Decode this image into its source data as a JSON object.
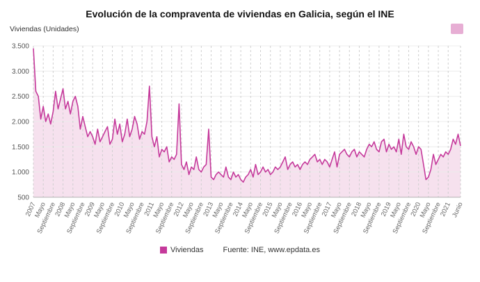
{
  "title": "Evolución de la compraventa de viviendas en Galicia, según el INE",
  "unit_label": "Viviendas (Unidades)",
  "legend": {
    "label": "Viviendas"
  },
  "source": "Fuente: INE, www.epdata.es",
  "colors": {
    "line": "#c5399b",
    "area": "#f6e1ee",
    "badge": "#e7aed4",
    "grid_v": "#cfcfcf",
    "grid_h": "#ececec",
    "axis": "#b0b0b0",
    "tick_text": "#666666"
  },
  "chart_data": {
    "type": "line",
    "title": "Evolución de la compraventa de viviendas en Galicia, según el INE",
    "xlabel": "",
    "ylabel": "Viviendas (Unidades)",
    "ylim": [
      500,
      3500
    ],
    "yticks": [
      500,
      1000,
      1500,
      2000,
      2500,
      3000,
      3500
    ],
    "ytick_labels": [
      "500",
      "1.000",
      "1.500",
      "2.000",
      "2.500",
      "3.000",
      "3.500"
    ],
    "x_unit": "month",
    "x_start": "2007-01",
    "x_end": "2021-06",
    "grid": "vertical-dashed",
    "legend_position": "bottom",
    "xticks": [
      {
        "i": 0,
        "label": "2007"
      },
      {
        "i": 4,
        "label": "Mayo"
      },
      {
        "i": 8,
        "label": "Septiembre"
      },
      {
        "i": 12,
        "label": "2008"
      },
      {
        "i": 16,
        "label": "Mayo"
      },
      {
        "i": 20,
        "label": "Septiembre"
      },
      {
        "i": 24,
        "label": "2009"
      },
      {
        "i": 28,
        "label": "Mayo"
      },
      {
        "i": 32,
        "label": "Septiembre"
      },
      {
        "i": 36,
        "label": "2010"
      },
      {
        "i": 40,
        "label": "Mayo"
      },
      {
        "i": 44,
        "label": "Septiembre"
      },
      {
        "i": 48,
        "label": "2011"
      },
      {
        "i": 52,
        "label": "Mayo"
      },
      {
        "i": 56,
        "label": "Septiembre"
      },
      {
        "i": 60,
        "label": "2012"
      },
      {
        "i": 64,
        "label": "Mayo"
      },
      {
        "i": 68,
        "label": "Septiembre"
      },
      {
        "i": 72,
        "label": "2013"
      },
      {
        "i": 76,
        "label": "Mayo"
      },
      {
        "i": 80,
        "label": "Septiembre"
      },
      {
        "i": 84,
        "label": "2014"
      },
      {
        "i": 88,
        "label": "Mayo"
      },
      {
        "i": 92,
        "label": "Septiembre"
      },
      {
        "i": 96,
        "label": "2015"
      },
      {
        "i": 100,
        "label": "Mayo"
      },
      {
        "i": 104,
        "label": "Septiembre"
      },
      {
        "i": 108,
        "label": "2016"
      },
      {
        "i": 112,
        "label": "Mayo"
      },
      {
        "i": 116,
        "label": "Septiembre"
      },
      {
        "i": 120,
        "label": "2017"
      },
      {
        "i": 124,
        "label": "Mayo"
      },
      {
        "i": 128,
        "label": "Septiembre"
      },
      {
        "i": 132,
        "label": "2018"
      },
      {
        "i": 136,
        "label": "Mayo"
      },
      {
        "i": 140,
        "label": "Septiembre"
      },
      {
        "i": 144,
        "label": "2019"
      },
      {
        "i": 148,
        "label": "Mayo"
      },
      {
        "i": 152,
        "label": "Septiembre"
      },
      {
        "i": 156,
        "label": "2020"
      },
      {
        "i": 160,
        "label": "Mayo"
      },
      {
        "i": 164,
        "label": "Septiembre"
      },
      {
        "i": 168,
        "label": "2021"
      },
      {
        "i": 173,
        "label": "Junio"
      }
    ],
    "series": [
      {
        "name": "Viviendas",
        "values": [
          3450,
          2600,
          2500,
          2050,
          2300,
          2000,
          2150,
          1950,
          2200,
          2600,
          2250,
          2450,
          2650,
          2250,
          2400,
          2150,
          2400,
          2500,
          2300,
          1850,
          2100,
          1900,
          1700,
          1800,
          1700,
          1550,
          1850,
          1600,
          1700,
          1800,
          1900,
          1550,
          1650,
          2050,
          1750,
          1950,
          1600,
          1750,
          2050,
          1700,
          1850,
          2100,
          1950,
          1650,
          1800,
          1750,
          2000,
          2700,
          1700,
          1500,
          1700,
          1300,
          1450,
          1400,
          1500,
          1200,
          1300,
          1250,
          1350,
          2350,
          1150,
          1050,
          1200,
          950,
          1100,
          1050,
          1300,
          1050,
          1000,
          1100,
          1150,
          1850,
          900,
          850,
          950,
          1000,
          950,
          900,
          1100,
          900,
          850,
          1000,
          900,
          950,
          850,
          800,
          900,
          950,
          1050,
          900,
          1150,
          950,
          1000,
          1100,
          1000,
          1050,
          950,
          1000,
          1100,
          1050,
          1100,
          1200,
          1300,
          1050,
          1150,
          1200,
          1100,
          1150,
          1050,
          1150,
          1200,
          1150,
          1250,
          1300,
          1350,
          1200,
          1250,
          1150,
          1250,
          1200,
          1100,
          1250,
          1400,
          1100,
          1350,
          1400,
          1450,
          1350,
          1300,
          1400,
          1450,
          1300,
          1400,
          1350,
          1300,
          1450,
          1550,
          1500,
          1600,
          1450,
          1400,
          1600,
          1650,
          1400,
          1550,
          1450,
          1500,
          1400,
          1650,
          1350,
          1750,
          1500,
          1450,
          1600,
          1500,
          1350,
          1500,
          1450,
          1150,
          850,
          900,
          1050,
          1350,
          1150,
          1250,
          1350,
          1300,
          1400,
          1350,
          1450,
          1650,
          1550,
          1750,
          1520
        ]
      }
    ]
  }
}
